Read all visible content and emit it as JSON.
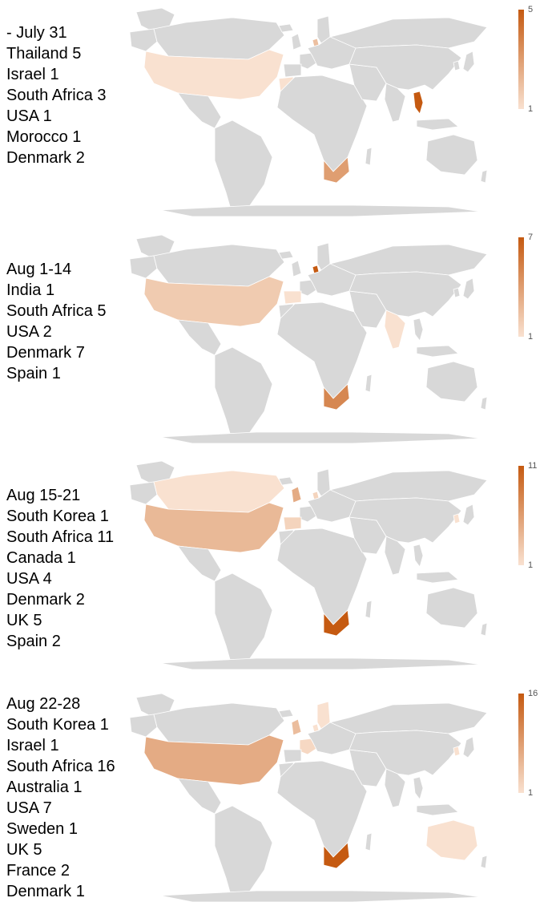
{
  "colors": {
    "land": "#d8d8d8",
    "low": "#f9e1d0",
    "high": "#c55a11"
  },
  "panels": [
    {
      "period": "- July 31",
      "legend": {
        "max": "5",
        "min": "1"
      },
      "items": [
        {
          "country": "Thailand",
          "count": "5"
        },
        {
          "country": "Israel",
          "count": "1"
        },
        {
          "country": "South Africa",
          "count": "3"
        },
        {
          "country": "USA",
          "count": "1"
        },
        {
          "country": "Morocco",
          "count": "1"
        },
        {
          "country": "Denmark",
          "count": "2"
        }
      ]
    },
    {
      "period": "Aug 1-14",
      "legend": {
        "max": "7",
        "min": "1"
      },
      "items": [
        {
          "country": "India",
          "count": "1"
        },
        {
          "country": "South Africa",
          "count": "5"
        },
        {
          "country": "USA",
          "count": "2"
        },
        {
          "country": "Denmark",
          "count": "7"
        },
        {
          "country": "Spain",
          "count": "1"
        }
      ]
    },
    {
      "period": "Aug 15-21",
      "legend": {
        "max": "11",
        "min": "1"
      },
      "items": [
        {
          "country": "South Korea",
          "count": "1"
        },
        {
          "country": "South Africa",
          "count": "11"
        },
        {
          "country": "Canada",
          "count": "1"
        },
        {
          "country": "USA",
          "count": "4"
        },
        {
          "country": "Denmark",
          "count": "2"
        },
        {
          "country": "UK",
          "count": "5"
        },
        {
          "country": "Spain",
          "count": "2"
        }
      ]
    },
    {
      "period": "Aug 22-28",
      "legend": {
        "max": "16",
        "min": "1"
      },
      "items": [
        {
          "country": "South Korea",
          "count": "1"
        },
        {
          "country": "Israel",
          "count": "1"
        },
        {
          "country": "South Africa",
          "count": "16"
        },
        {
          "country": "Australia",
          "count": "1"
        },
        {
          "country": "USA",
          "count": "7"
        },
        {
          "country": "Sweden",
          "count": "1"
        },
        {
          "country": "UK",
          "count": "5"
        },
        {
          "country": "France",
          "count": "2"
        },
        {
          "country": "Denmark",
          "count": "1"
        }
      ]
    }
  ]
}
